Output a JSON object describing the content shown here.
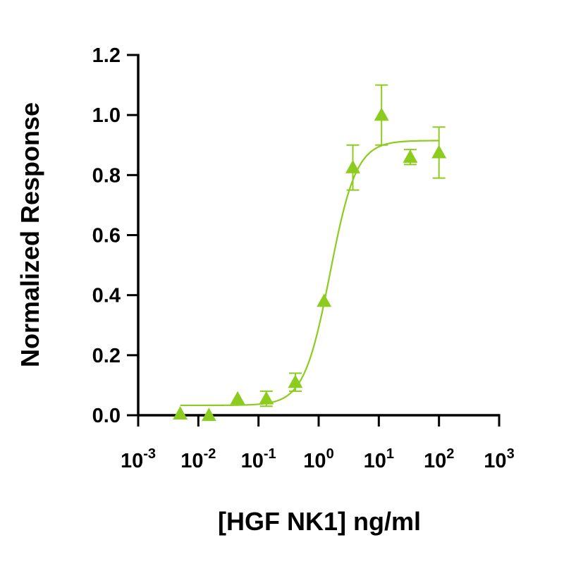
{
  "chart_data": {
    "type": "scatter",
    "xlabel": "[HGF NK1] ng/ml",
    "ylabel": "Normalized Response",
    "x_scale": "log10",
    "xlim": [
      0.001,
      1000
    ],
    "ylim": [
      0,
      1.2
    ],
    "x_ticks": [
      {
        "base": "10",
        "exp": "-3",
        "value": 0.001
      },
      {
        "base": "10",
        "exp": "-2",
        "value": 0.01
      },
      {
        "base": "10",
        "exp": "-1",
        "value": 0.1
      },
      {
        "base": "10",
        "exp": "0",
        "value": 1
      },
      {
        "base": "10",
        "exp": "1",
        "value": 10
      },
      {
        "base": "10",
        "exp": "2",
        "value": 100
      },
      {
        "base": "10",
        "exp": "3",
        "value": 1000
      }
    ],
    "y_ticks": [
      "0.0",
      "0.2",
      "0.4",
      "0.6",
      "0.8",
      "1.0",
      "1.2"
    ],
    "grid": false,
    "series": [
      {
        "marker": "triangle",
        "color": "#8ccc1e",
        "points": [
          {
            "x": 0.005,
            "y": 0.005,
            "err": 0.0
          },
          {
            "x": 0.015,
            "y": 0.0,
            "err": 0.0
          },
          {
            "x": 0.045,
            "y": 0.055,
            "err": 0.0
          },
          {
            "x": 0.135,
            "y": 0.055,
            "err": 0.025
          },
          {
            "x": 0.41,
            "y": 0.11,
            "err": 0.03
          },
          {
            "x": 1.23,
            "y": 0.38,
            "err": 0.0
          },
          {
            "x": 3.7,
            "y": 0.825,
            "err": 0.075
          },
          {
            "x": 11.1,
            "y": 1.0,
            "err": 0.1
          },
          {
            "x": 33.3,
            "y": 0.86,
            "err": 0.025
          },
          {
            "x": 100,
            "y": 0.875,
            "err": 0.085
          }
        ],
        "fit": {
          "bottom": 0.033,
          "top": 0.915,
          "ec50": 1.55,
          "hill": 2.0,
          "x_range": [
            0.005,
            100
          ]
        }
      }
    ]
  }
}
